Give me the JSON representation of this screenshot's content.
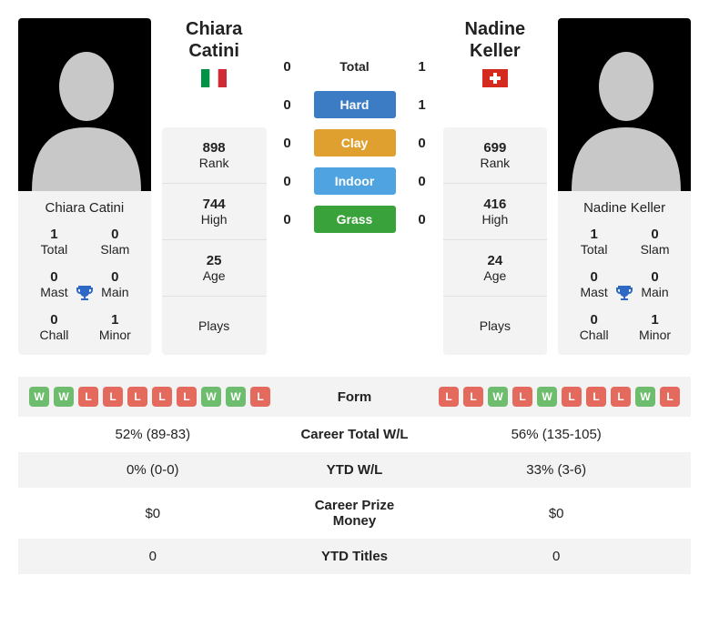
{
  "players": {
    "a": {
      "name": "Chiara Catini",
      "flag": "italy",
      "rank": "898",
      "high": "744",
      "age": "25",
      "plays": "",
      "titles": {
        "total": "1",
        "slam": "0",
        "mast": "0",
        "main": "0",
        "chall": "0",
        "minor": "1"
      },
      "form": [
        "W",
        "W",
        "L",
        "L",
        "L",
        "L",
        "L",
        "W",
        "W",
        "L"
      ]
    },
    "b": {
      "name": "Nadine Keller",
      "flag": "switzerland",
      "rank": "699",
      "high": "416",
      "age": "24",
      "plays": "",
      "titles": {
        "total": "1",
        "slam": "0",
        "mast": "0",
        "main": "0",
        "chall": "0",
        "minor": "1"
      },
      "form": [
        "L",
        "L",
        "W",
        "L",
        "W",
        "L",
        "L",
        "L",
        "W",
        "L"
      ]
    }
  },
  "title_labels": {
    "total": "Total",
    "slam": "Slam",
    "mast": "Mast",
    "main": "Main",
    "chall": "Chall",
    "minor": "Minor"
  },
  "stat_labels": {
    "rank": "Rank",
    "high": "High",
    "age": "Age",
    "plays": "Plays"
  },
  "h2h": {
    "surfaces": [
      {
        "label": "Total",
        "a": "0",
        "b": "1",
        "color": "transparent",
        "plain": true
      },
      {
        "label": "Hard",
        "a": "0",
        "b": "1",
        "color": "#3b7cc4"
      },
      {
        "label": "Clay",
        "a": "0",
        "b": "0",
        "color": "#e0a030"
      },
      {
        "label": "Indoor",
        "a": "0",
        "b": "0",
        "color": "#4ea3e0"
      },
      {
        "label": "Grass",
        "a": "0",
        "b": "0",
        "color": "#3aa23a"
      }
    ]
  },
  "info_rows": [
    {
      "label": "Form",
      "type": "form"
    },
    {
      "label": "Career Total W/L",
      "a": "52% (89-83)",
      "b": "56% (135-105)"
    },
    {
      "label": "YTD W/L",
      "a": "0% (0-0)",
      "b": "33% (3-6)"
    },
    {
      "label": "Career Prize Money",
      "a": "$0",
      "b": "$0"
    },
    {
      "label": "YTD Titles",
      "a": "0",
      "b": "0"
    }
  ],
  "colors": {
    "win": "#6ebd6e",
    "loss": "#e46a5e",
    "trophy": "#2f69c6"
  }
}
